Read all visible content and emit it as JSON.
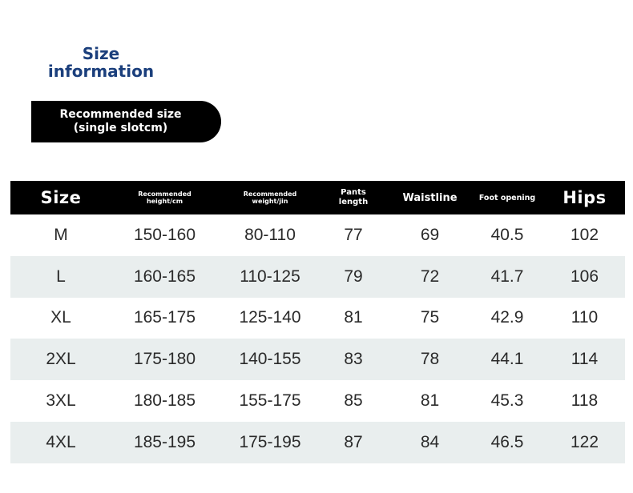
{
  "title": {
    "line1": "Size",
    "line2": "information"
  },
  "pill": {
    "line1": "Recommended size",
    "line2": "(single slotcm)"
  },
  "table": {
    "headers": [
      {
        "line1": "Size",
        "line2": ""
      },
      {
        "line1": "Recommended",
        "line2": "height/cm"
      },
      {
        "line1": "Recommended",
        "line2": "weight/jin"
      },
      {
        "line1": "Pants",
        "line2": "length"
      },
      {
        "line1": "Waistline",
        "line2": ""
      },
      {
        "line1": "Foot opening",
        "line2": ""
      },
      {
        "line1": "Hips",
        "line2": ""
      }
    ],
    "rows": [
      [
        "M",
        "150-160",
        "80-110",
        "77",
        "69",
        "40.5",
        "102"
      ],
      [
        "L",
        "160-165",
        "110-125",
        "79",
        "72",
        "41.7",
        "106"
      ],
      [
        "XL",
        "165-175",
        "125-140",
        "81",
        "75",
        "42.9",
        "110"
      ],
      [
        "2XL",
        "175-180",
        "140-155",
        "83",
        "78",
        "44.1",
        "114"
      ],
      [
        "3XL",
        "180-185",
        "155-175",
        "85",
        "81",
        "45.3",
        "118"
      ],
      [
        "4XL",
        "185-195",
        "175-195",
        "87",
        "84",
        "46.5",
        "122"
      ]
    ]
  },
  "colors": {
    "title": "#1b3f7c",
    "header_bg": "#000000",
    "row_shade": "#e9eeee"
  }
}
